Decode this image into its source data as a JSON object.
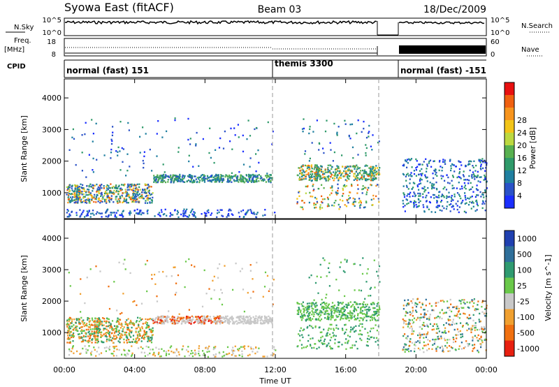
{
  "header": {
    "station": "Syowa East (fitACF)",
    "beam": "Beam 03",
    "date": "18/Dec/2009"
  },
  "strip": {
    "nsky_label": "N.Sky",
    "nsky_tick_top": "10^5",
    "nsky_tick_bottom": "10^0",
    "nsearch_label": "N.Search",
    "freq_label": "Freq.",
    "freq_unit": "[MHz]",
    "freq_tick_top": "18",
    "freq_tick_bottom": "8",
    "nave_label": "Nave",
    "nave_tick_top": "60",
    "nave_tick_bottom": "0",
    "cpid_label": "CPID",
    "cpid_segments": [
      "normal (fast) 151",
      "themis 3300",
      "normal (fast) -151"
    ]
  },
  "chart_data": [
    {
      "type": "heatmap",
      "ylabel": "Slant Range [km]",
      "y_ticks": [
        "1000",
        "2000",
        "3000",
        "4000"
      ],
      "ylim": [
        180,
        4600
      ],
      "xlim_hours": [
        0,
        24
      ],
      "colorbar": {
        "label": "Power [dB]",
        "ticks": [
          "4",
          "8",
          "12",
          "16",
          "20",
          "24",
          "28"
        ],
        "colors": [
          "#1a2eff",
          "#2a52c8",
          "#1f7fa0",
          "#2f9a6a",
          "#58b050",
          "#bcd840",
          "#f2c418",
          "#f7941d",
          "#f06010",
          "#e81010"
        ]
      }
    },
    {
      "type": "heatmap",
      "ylabel": "Slant Range [km]",
      "y_ticks": [
        "1000",
        "2000",
        "3000",
        "4000"
      ],
      "ylim": [
        180,
        4600
      ],
      "xlim_hours": [
        0,
        24
      ],
      "colorbar": {
        "label": "Velocity [m s^-1]",
        "ticks": [
          "1000",
          "500",
          "100",
          "25",
          "-25",
          "-100",
          "-500",
          "-1000"
        ],
        "colors": [
          "#2040b0",
          "#2f6f9a",
          "#2f9a70",
          "#6ac84a",
          "#c8c8c8",
          "#f0a030",
          "#f07010",
          "#e82010"
        ]
      }
    }
  ],
  "x_axis": {
    "ticks": [
      "00:00",
      "04:00",
      "08:00",
      "12:00",
      "16:00",
      "20:00",
      "00:00"
    ],
    "label": "Time UT"
  }
}
